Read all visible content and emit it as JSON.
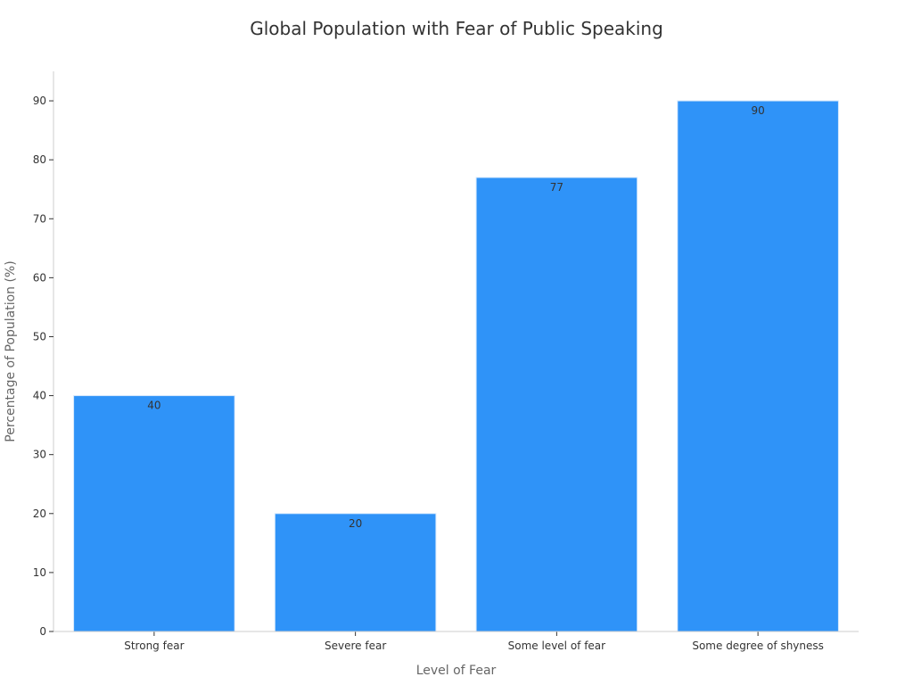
{
  "chart_data": {
    "type": "bar",
    "title": "Global Population with Fear of Public Speaking",
    "xlabel": "Level of Fear",
    "ylabel": "Percentage of Population (%)",
    "categories": [
      "Strong fear",
      "Severe fear",
      "Some level of fear",
      "Some degree of shyness"
    ],
    "values": [
      40,
      20,
      77,
      90
    ],
    "ylim": [
      0,
      95
    ],
    "yticks": [
      0,
      10,
      20,
      30,
      40,
      50,
      60,
      70,
      80,
      90
    ],
    "bar_color": "#2f93f8",
    "grid": false,
    "legend": "none"
  }
}
